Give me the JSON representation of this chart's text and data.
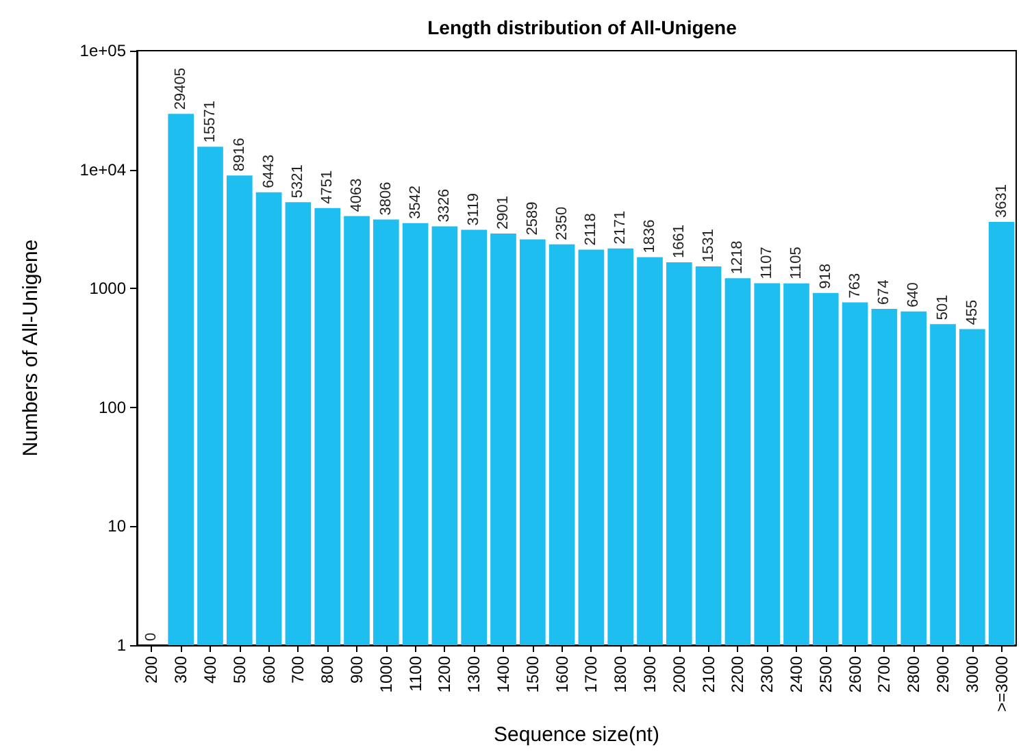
{
  "chart_data": {
    "type": "bar",
    "title": "Length distribution of All-Unigene",
    "xlabel": "Sequence size(nt)",
    "ylabel": "Numbers of All-Unigene",
    "categories": [
      "200",
      "300",
      "400",
      "500",
      "600",
      "700",
      "800",
      "900",
      "1000",
      "1100",
      "1200",
      "1300",
      "1400",
      "1500",
      "1600",
      "1700",
      "1800",
      "1900",
      "2000",
      "2100",
      "2200",
      "2300",
      "2400",
      "2500",
      "2600",
      "2700",
      "2800",
      "2900",
      "3000",
      ">=3000"
    ],
    "values": [
      null,
      29405,
      15571,
      8916,
      6443,
      5321,
      4751,
      4063,
      3806,
      3542,
      3326,
      3119,
      2901,
      2589,
      2350,
      2118,
      2171,
      1836,
      1661,
      1531,
      1218,
      1107,
      1105,
      918,
      763,
      674,
      640,
      501,
      455,
      3631
    ],
    "value_labels": [
      "0",
      "29405",
      "15571",
      "8916",
      "6443",
      "5321",
      "4751",
      "4063",
      "3806",
      "3542",
      "3326",
      "3119",
      "2901",
      "2589",
      "2350",
      "2118",
      "2171",
      "1836",
      "1661",
      "1531",
      "1218",
      "1107",
      "1105",
      "918",
      "763",
      "674",
      "640",
      "501",
      "455",
      "3631"
    ],
    "color": "#1ebef0",
    "log": "y",
    "ylim": [
      1,
      100000
    ],
    "yticks": [
      1,
      10,
      100,
      1000,
      {
        "value": 10000,
        "label": "1e+04"
      },
      {
        "value": 100000,
        "label": "1e+05"
      }
    ],
    "grid": false
  }
}
